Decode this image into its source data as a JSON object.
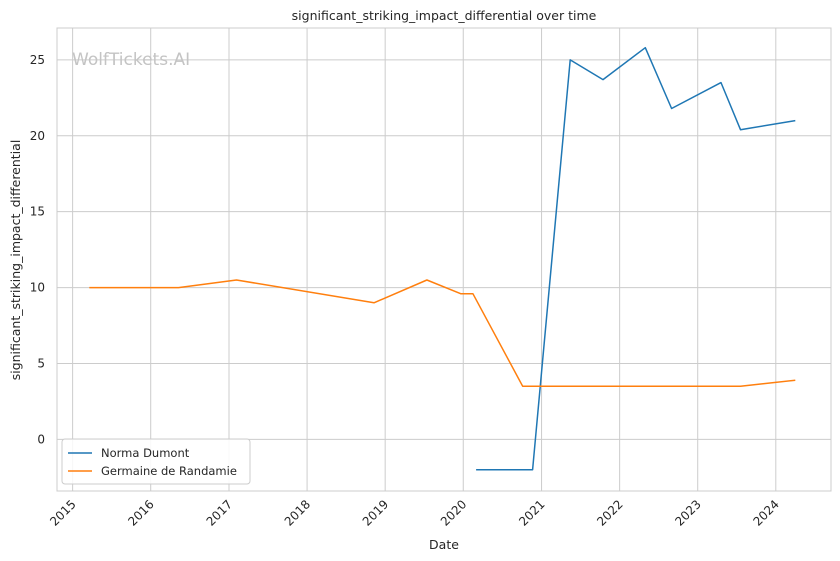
{
  "watermark": "WolfTickets.AI",
  "chart_data": {
    "type": "line",
    "title": "significant_striking_impact_differential over time",
    "xlabel": "Date",
    "ylabel": "significant_striking_impact_differential",
    "x_ticks": [
      "2015",
      "2016",
      "2017",
      "2018",
      "2019",
      "2020",
      "2021",
      "2022",
      "2023",
      "2024"
    ],
    "y_ticks": [
      0,
      5,
      10,
      15,
      20,
      25
    ],
    "xlim": [
      "2014-10-20",
      "2024-09-15"
    ],
    "ylim": [
      -3.4,
      27.1
    ],
    "grid": true,
    "legend_position": "lower-left",
    "series": [
      {
        "name": "Norma Dumont",
        "color": "#1f77b4",
        "points": [
          [
            "2020-03-01",
            -2.0
          ],
          [
            "2020-11-20",
            -2.0
          ],
          [
            "2021-05-15",
            25.0
          ],
          [
            "2021-10-15",
            23.7
          ],
          [
            "2022-05-01",
            25.8
          ],
          [
            "2022-09-01",
            21.8
          ],
          [
            "2023-04-20",
            23.5
          ],
          [
            "2023-07-20",
            20.4
          ],
          [
            "2024-04-01",
            21.0
          ]
        ]
      },
      {
        "name": "Germaine de Randamie",
        "color": "#ff7f0e",
        "points": [
          [
            "2015-03-20",
            10.0
          ],
          [
            "2016-05-10",
            10.0
          ],
          [
            "2017-02-05",
            10.5
          ],
          [
            "2018-11-10",
            9.0
          ],
          [
            "2019-07-15",
            10.5
          ],
          [
            "2019-12-20",
            9.6
          ],
          [
            "2020-02-15",
            9.6
          ],
          [
            "2020-10-05",
            3.5
          ],
          [
            "2023-07-20",
            3.5
          ],
          [
            "2024-04-01",
            3.9
          ]
        ]
      }
    ]
  }
}
